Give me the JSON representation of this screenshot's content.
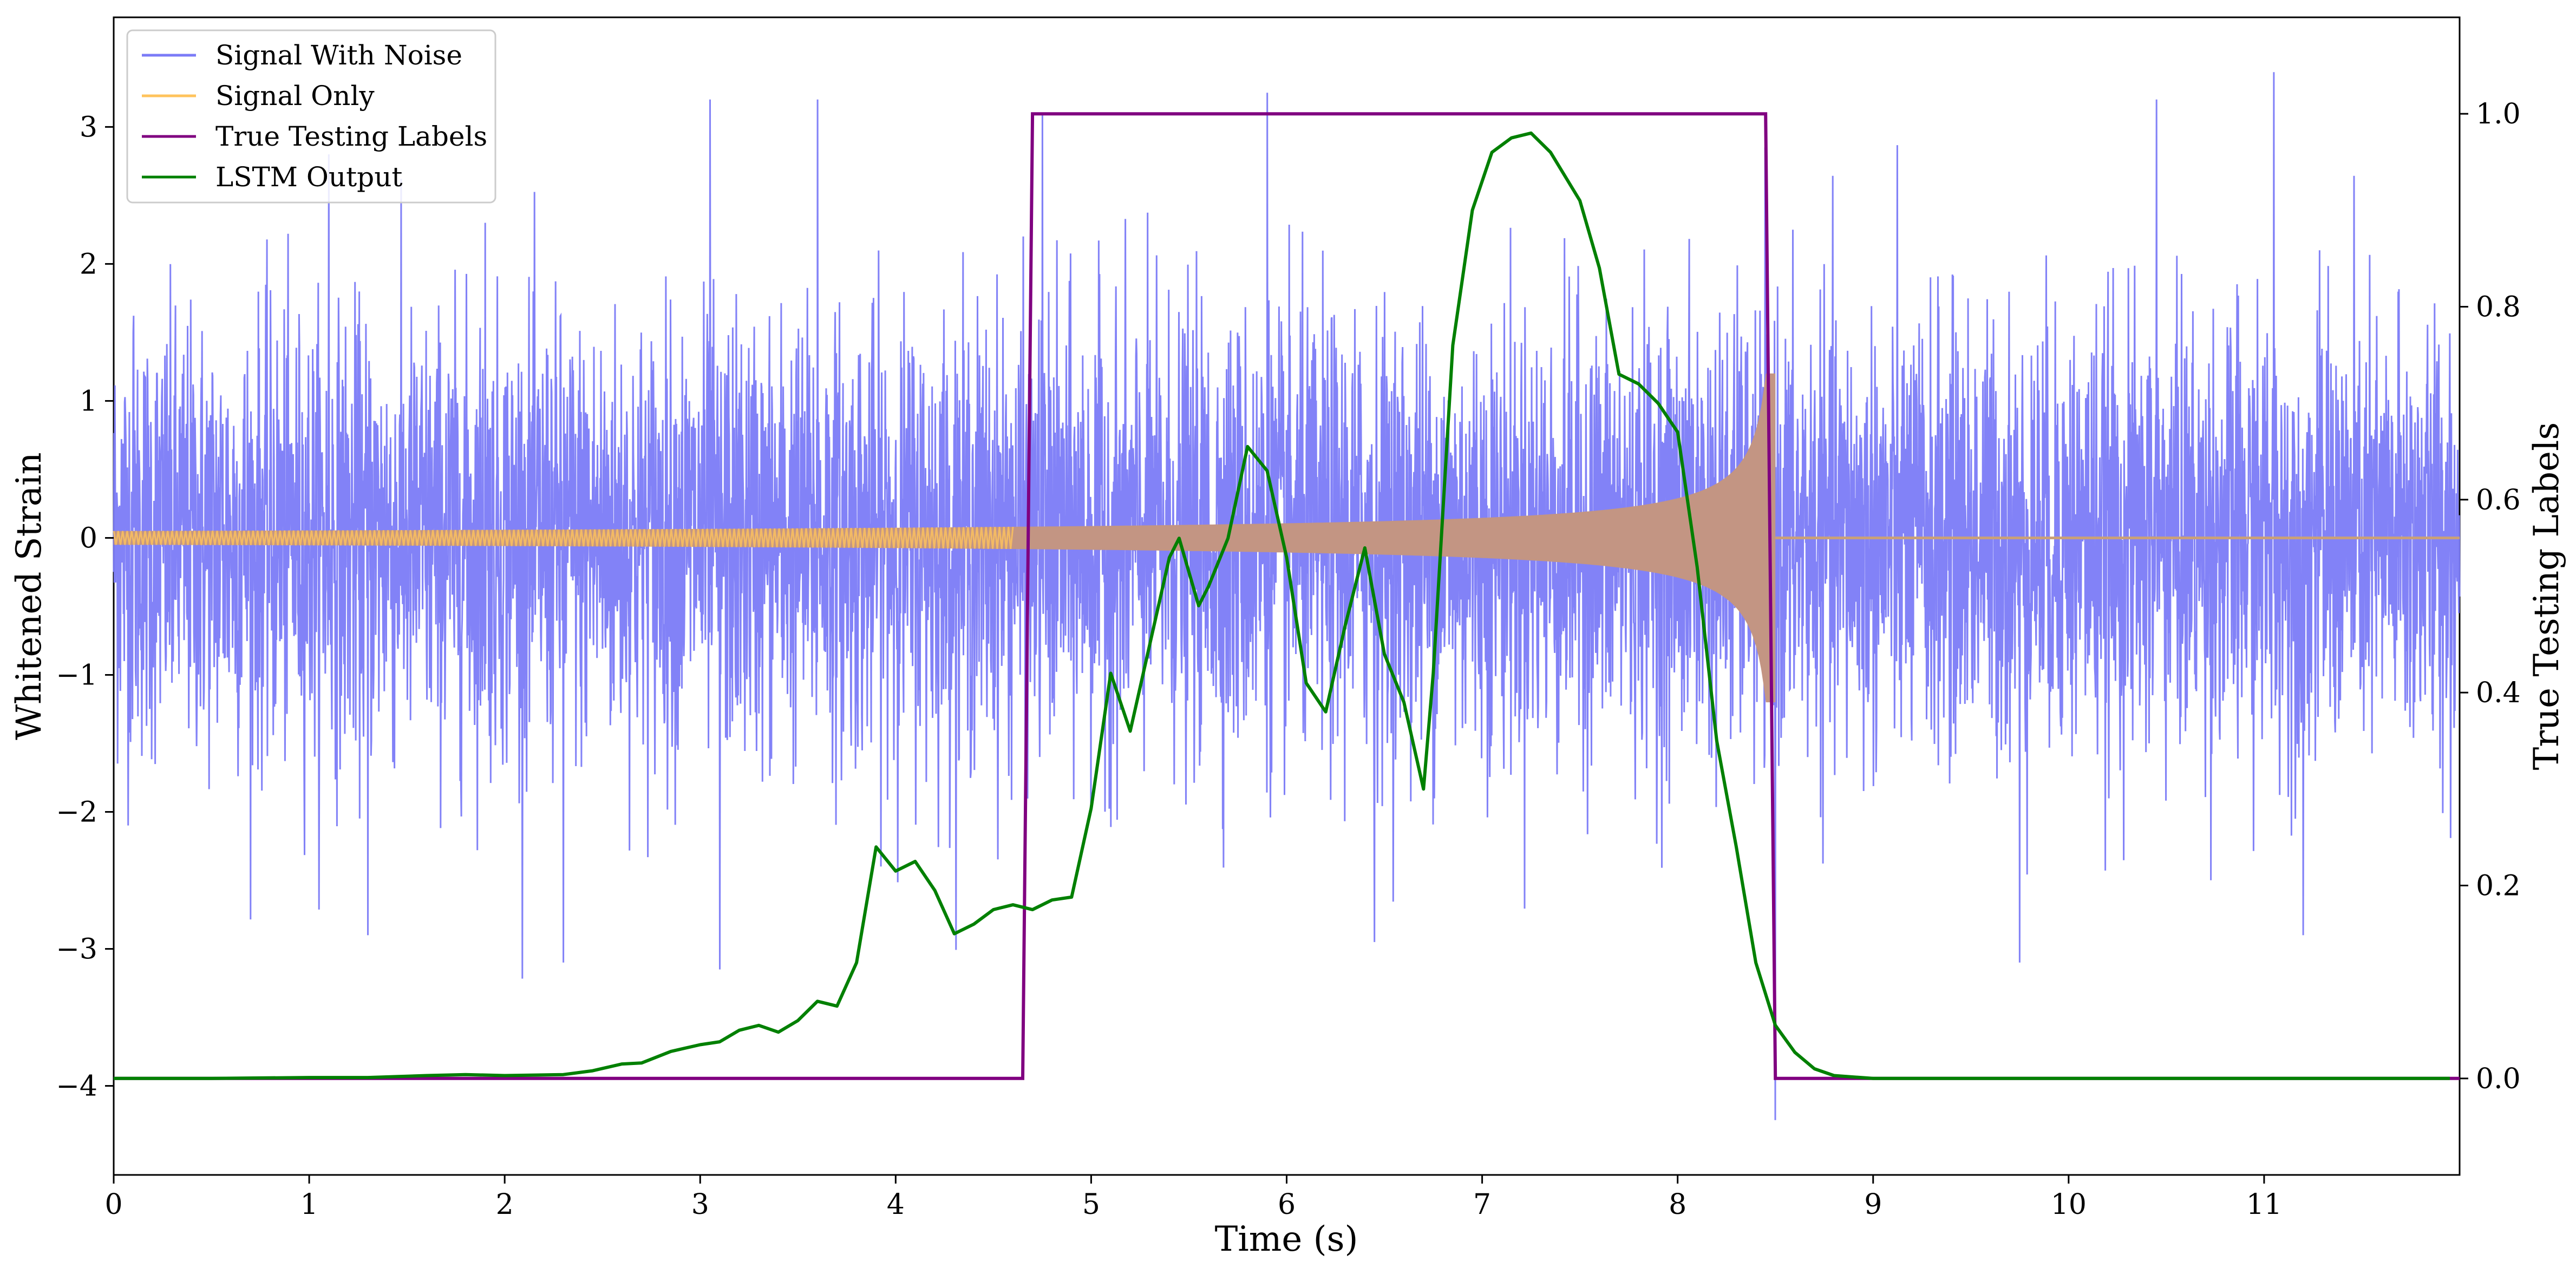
{
  "chart_data": {
    "type": "line",
    "title": "",
    "xlabel": "Time (s)",
    "ylabel": "Whitened Strain",
    "ylabel_right": "True Testing Labels",
    "xlim": [
      0,
      12
    ],
    "ylim": [
      -4.65,
      3.8
    ],
    "ylim_right": [
      -0.1,
      1.1
    ],
    "x_ticks": [
      0,
      1,
      2,
      3,
      4,
      5,
      6,
      7,
      8,
      9,
      10,
      11
    ],
    "y_ticks": [
      -4,
      -3,
      -2,
      -1,
      0,
      1,
      2,
      3
    ],
    "y_ticks_right": [
      0.0,
      0.2,
      0.4,
      0.6,
      0.8,
      1.0
    ],
    "grid": false,
    "legend_position": "top-left",
    "colors": {
      "signal_with_noise": "#7b7bf7",
      "signal_only": "#ffc35c",
      "true_labels": "#800080",
      "lstm_output": "#008000"
    },
    "series": [
      {
        "name": "Signal With Noise",
        "axis": "left",
        "note_kind": "noise",
        "amplitude_std": 0.8,
        "x_range": [
          0,
          12
        ],
        "peaks": [
          [
            0.1,
            1.5
          ],
          [
            1.1,
            2.8
          ],
          [
            1.9,
            2.3
          ],
          [
            3.05,
            3.2
          ],
          [
            3.1,
            -3.15
          ],
          [
            3.6,
            3.2
          ],
          [
            4.75,
            3.1
          ],
          [
            5.9,
            3.25
          ],
          [
            6.45,
            -2.95
          ],
          [
            9.75,
            -3.1
          ],
          [
            10.45,
            3.2
          ],
          [
            11.05,
            3.4
          ],
          [
            11.2,
            -2.9
          ],
          [
            8.5,
            -4.25
          ],
          [
            2.3,
            -3.1
          ],
          [
            1.3,
            -2.9
          ]
        ]
      },
      {
        "name": "Signal Only",
        "axis": "left",
        "note_kind": "chirp",
        "x_range": [
          0,
          12
        ],
        "merger_time": 8.5,
        "start_amplitude": 0.05,
        "peak_amplitude": 1.2
      },
      {
        "name": "True Testing Labels",
        "axis": "right",
        "x": [
          0,
          4.65,
          4.7,
          8.45,
          8.5,
          12
        ],
        "values": [
          0,
          0,
          1,
          1,
          0,
          0
        ]
      },
      {
        "name": "LSTM Output",
        "axis": "right",
        "x": [
          0,
          0.5,
          1.0,
          1.3,
          1.6,
          1.8,
          2.0,
          2.3,
          2.45,
          2.6,
          2.7,
          2.85,
          3.0,
          3.1,
          3.2,
          3.3,
          3.4,
          3.5,
          3.6,
          3.7,
          3.8,
          3.9,
          4.0,
          4.1,
          4.2,
          4.3,
          4.4,
          4.5,
          4.6,
          4.7,
          4.8,
          4.9,
          5.0,
          5.1,
          5.2,
          5.3,
          5.4,
          5.45,
          5.55,
          5.6,
          5.7,
          5.8,
          5.9,
          6.0,
          6.1,
          6.2,
          6.3,
          6.4,
          6.5,
          6.6,
          6.7,
          6.75,
          6.85,
          6.95,
          7.05,
          7.15,
          7.25,
          7.35,
          7.5,
          7.6,
          7.7,
          7.8,
          7.9,
          8.0,
          8.1,
          8.2,
          8.3,
          8.4,
          8.5,
          8.6,
          8.7,
          8.8,
          9.0,
          10.0,
          11.0,
          11.95
        ],
        "values": [
          0.0,
          0.0,
          0.001,
          0.001,
          0.003,
          0.004,
          0.003,
          0.004,
          0.008,
          0.015,
          0.016,
          0.028,
          0.035,
          0.038,
          0.05,
          0.055,
          0.048,
          0.06,
          0.08,
          0.075,
          0.12,
          0.24,
          0.215,
          0.225,
          0.195,
          0.15,
          0.16,
          0.175,
          0.18,
          0.175,
          0.185,
          0.188,
          0.28,
          0.42,
          0.36,
          0.45,
          0.54,
          0.56,
          0.49,
          0.51,
          0.56,
          0.655,
          0.63,
          0.54,
          0.41,
          0.38,
          0.47,
          0.55,
          0.44,
          0.39,
          0.3,
          0.42,
          0.76,
          0.9,
          0.96,
          0.975,
          0.98,
          0.96,
          0.91,
          0.84,
          0.73,
          0.72,
          0.7,
          0.67,
          0.53,
          0.35,
          0.24,
          0.12,
          0.055,
          0.027,
          0.01,
          0.003,
          0.0,
          0.0,
          0.0,
          0.0
        ]
      }
    ]
  }
}
